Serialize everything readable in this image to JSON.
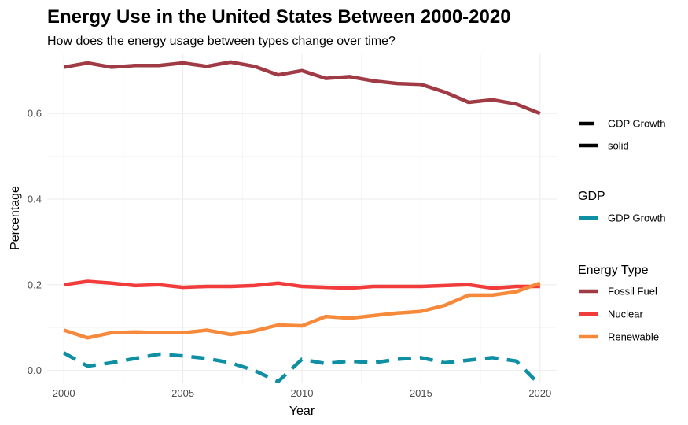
{
  "chart_data": {
    "type": "line",
    "title": "Energy Use in the United States Between 2000-2020",
    "subtitle": "How does the energy usage between types change over time?",
    "xlabel": "Year",
    "ylabel": "Percentage",
    "xlim": [
      1999.3,
      2020.7
    ],
    "ylim": [
      -0.03,
      0.74
    ],
    "x_ticks": [
      2000,
      2005,
      2010,
      2015,
      2020
    ],
    "y_ticks": [
      0.0,
      0.2,
      0.4,
      0.6
    ],
    "y_tick_labels": [
      "0.0",
      "0.2",
      "0.4",
      "0.6"
    ],
    "grid": true,
    "legend_position": "right",
    "x": [
      2000,
      2001,
      2002,
      2003,
      2004,
      2005,
      2006,
      2007,
      2008,
      2009,
      2010,
      2011,
      2012,
      2013,
      2014,
      2015,
      2016,
      2017,
      2018,
      2019,
      2020
    ],
    "series": [
      {
        "name": "Fossil Fuel",
        "color": "#a03a45",
        "dash": "solid",
        "values": [
          0.708,
          0.718,
          0.708,
          0.712,
          0.712,
          0.718,
          0.71,
          0.72,
          0.71,
          0.69,
          0.7,
          0.682,
          0.686,
          0.676,
          0.67,
          0.668,
          0.65,
          0.626,
          0.632,
          0.622,
          0.6
        ]
      },
      {
        "name": "Nuclear",
        "color": "#f23b3b",
        "dash": "solid",
        "values": [
          0.2,
          0.208,
          0.204,
          0.198,
          0.2,
          0.194,
          0.196,
          0.196,
          0.198,
          0.204,
          0.196,
          0.194,
          0.192,
          0.196,
          0.196,
          0.196,
          0.198,
          0.2,
          0.192,
          0.196,
          0.196
        ]
      },
      {
        "name": "Renewable",
        "color": "#f7893b",
        "dash": "solid",
        "values": [
          0.094,
          0.076,
          0.088,
          0.09,
          0.088,
          0.088,
          0.094,
          0.084,
          0.092,
          0.106,
          0.104,
          0.126,
          0.122,
          0.128,
          0.134,
          0.138,
          0.152,
          0.176,
          0.176,
          0.184,
          0.204
        ]
      },
      {
        "name": "GDP Growth",
        "color": "#0e8fa3",
        "dash": "dashed",
        "values": [
          0.041,
          0.01,
          0.018,
          0.028,
          0.038,
          0.034,
          0.028,
          0.018,
          0.0,
          -0.026,
          0.026,
          0.016,
          0.022,
          0.018,
          0.026,
          0.03,
          0.018,
          0.024,
          0.03,
          0.022,
          -0.034
        ]
      }
    ],
    "legends": [
      {
        "title": "",
        "items": [
          {
            "label": "GDP Growth",
            "color": "#000000",
            "dash": "dashed"
          },
          {
            "label": "solid",
            "color": "#000000",
            "dash": "solid"
          }
        ]
      },
      {
        "title": "GDP",
        "items": [
          {
            "label": "GDP Growth",
            "color": "#0e8fa3",
            "dash": "solid"
          }
        ]
      },
      {
        "title": "Energy Type",
        "items": [
          {
            "label": "Fossil Fuel",
            "color": "#a03a45",
            "dash": "solid"
          },
          {
            "label": "Nuclear",
            "color": "#f23b3b",
            "dash": "solid"
          },
          {
            "label": "Renewable",
            "color": "#f7893b",
            "dash": "solid"
          }
        ]
      }
    ]
  }
}
